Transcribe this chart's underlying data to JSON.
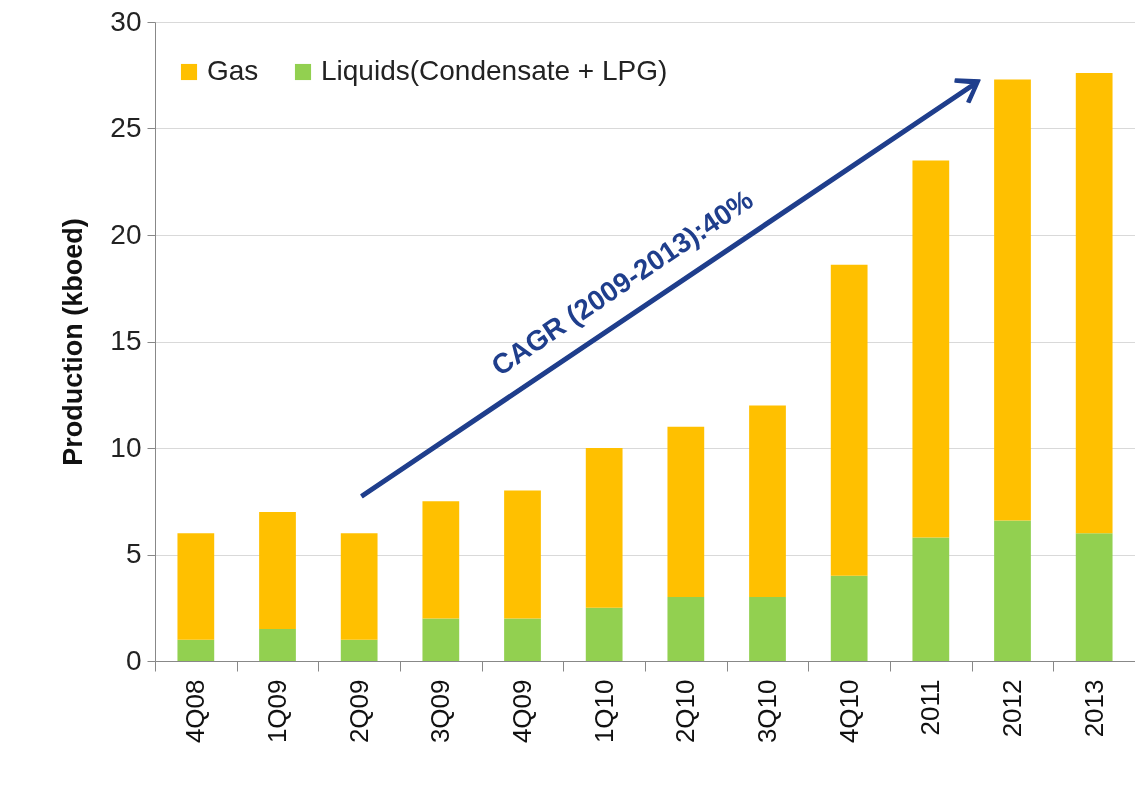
{
  "chart_data": {
    "type": "bar",
    "stacked": true,
    "ylabel": "Production (kboed)",
    "categories": [
      "4Q08",
      "1Q09",
      "2Q09",
      "3Q09",
      "4Q09",
      "1Q10",
      "2Q10",
      "3Q10",
      "4Q10",
      "2011",
      "2012",
      "2013"
    ],
    "series": [
      {
        "name": "Liquids(Condensate + LPG)",
        "color": "#92d050",
        "values": [
          1,
          1.5,
          1,
          2,
          2,
          2.5,
          3,
          3,
          4,
          5.8,
          6.6,
          6
        ]
      },
      {
        "name": "Gas",
        "color": "#ffc000",
        "values": [
          5,
          5.5,
          5,
          5.5,
          6,
          7.5,
          8,
          9,
          14.6,
          17.7,
          20.7,
          21.6
        ]
      }
    ],
    "ylim": [
      0,
      30
    ],
    "yticks": [
      0,
      5,
      10,
      15,
      20,
      25,
      30
    ],
    "grid": "y",
    "legend": "top left",
    "annotations": [
      "CAGR (2009-2013):40%"
    ]
  }
}
